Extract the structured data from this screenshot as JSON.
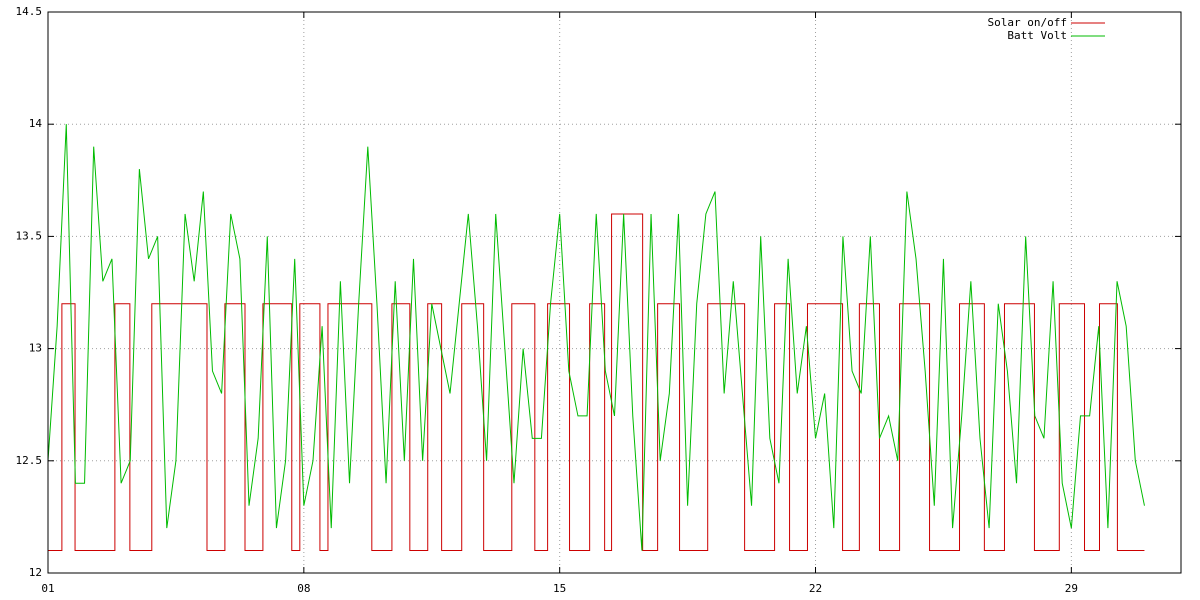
{
  "chart_data": {
    "type": "line",
    "xlim": [
      1,
      32
    ],
    "ylim": [
      12,
      14.5
    ],
    "xticks": [
      {
        "value": 1,
        "label": "01"
      },
      {
        "value": 8,
        "label": "08"
      },
      {
        "value": 15,
        "label": "15"
      },
      {
        "value": 22,
        "label": "22"
      },
      {
        "value": 29,
        "label": "29"
      }
    ],
    "yticks": [
      12,
      12.5,
      13,
      13.5,
      14,
      14.5
    ],
    "grid": true,
    "legend": "top-right",
    "series": [
      {
        "name": "Solar on/off",
        "color": "#cc0000",
        "step": true,
        "x": [
          1,
          1.38,
          1.74,
          2.83,
          3.24,
          3.84,
          5.35,
          5.84,
          6.39,
          6.88,
          7.67,
          7.89,
          8.44,
          8.66,
          9.86,
          10.41,
          10.9,
          11.39,
          11.77,
          12.32,
          12.92,
          13.69,
          14.32,
          14.67,
          15.27,
          15.82,
          16.23,
          16.42,
          17.27,
          17.68,
          18.28,
          19.05,
          20.06,
          20.88,
          21.29,
          21.78,
          22.74,
          23.2,
          23.75,
          24.3,
          25.12,
          25.94,
          26.62,
          27.17,
          27.99,
          28.67,
          29.36,
          29.77,
          30.26,
          31
        ],
        "values": [
          12.1,
          13.2,
          12.1,
          13.2,
          12.1,
          13.2,
          12.1,
          13.2,
          12.1,
          13.2,
          12.1,
          13.2,
          12.1,
          13.2,
          12.1,
          13.2,
          12.1,
          13.2,
          12.1,
          13.2,
          12.1,
          13.2,
          12.1,
          13.2,
          12.1,
          13.2,
          12.1,
          13.6,
          12.1,
          13.2,
          12.1,
          13.2,
          12.1,
          13.2,
          12.1,
          13.2,
          12.1,
          13.2,
          12.1,
          13.2,
          12.1,
          13.2,
          12.1,
          13.2,
          12.1,
          13.2,
          12.1,
          13.2,
          12.1,
          12.1
        ]
      },
      {
        "name": "Batt Volt",
        "color": "#00bb00",
        "x": [
          1,
          1.25,
          1.5,
          1.75,
          2,
          2.25,
          2.5,
          2.75,
          3,
          3.25,
          3.5,
          3.75,
          4,
          4.25,
          4.5,
          4.75,
          5,
          5.25,
          5.5,
          5.75,
          6,
          6.25,
          6.5,
          6.75,
          7,
          7.25,
          7.5,
          7.75,
          8,
          8.25,
          8.5,
          8.75,
          9,
          9.25,
          9.5,
          9.75,
          10,
          10.25,
          10.5,
          10.75,
          11,
          11.25,
          11.5,
          11.75,
          12,
          12.25,
          12.5,
          12.75,
          13,
          13.25,
          13.5,
          13.75,
          14,
          14.25,
          14.5,
          14.75,
          15,
          15.25,
          15.5,
          15.75,
          16,
          16.25,
          16.5,
          16.75,
          17,
          17.25,
          17.5,
          17.75,
          18,
          18.25,
          18.5,
          18.75,
          19,
          19.25,
          19.5,
          19.75,
          20,
          20.25,
          20.5,
          20.75,
          21,
          21.25,
          21.5,
          21.75,
          22,
          22.25,
          22.5,
          22.75,
          23,
          23.25,
          23.5,
          23.75,
          24,
          24.25,
          24.5,
          24.75,
          25,
          25.25,
          25.5,
          25.75,
          26,
          26.25,
          26.5,
          26.75,
          27,
          27.25,
          27.5,
          27.75,
          28,
          28.25,
          28.5,
          28.75,
          29,
          29.25,
          29.5,
          29.75,
          30,
          30.25,
          30.5,
          30.75,
          31
        ],
        "values": [
          12.5,
          13.1,
          14.0,
          12.4,
          12.4,
          13.9,
          13.3,
          13.4,
          12.4,
          12.5,
          13.8,
          13.4,
          13.5,
          12.2,
          12.5,
          13.6,
          13.3,
          13.7,
          12.9,
          12.8,
          13.6,
          13.4,
          12.3,
          12.6,
          13.5,
          12.2,
          12.5,
          13.4,
          12.3,
          12.5,
          13.1,
          12.2,
          13.3,
          12.4,
          13.2,
          13.9,
          13.2,
          12.4,
          13.3,
          12.5,
          13.4,
          12.5,
          13.2,
          13.0,
          12.8,
          13.2,
          13.6,
          13.1,
          12.5,
          13.6,
          13.0,
          12.4,
          13.0,
          12.6,
          12.6,
          13.2,
          13.6,
          12.9,
          12.7,
          12.7,
          13.6,
          12.9,
          12.7,
          13.6,
          12.7,
          12.1,
          13.6,
          12.5,
          12.8,
          13.6,
          12.3,
          13.2,
          13.6,
          13.7,
          12.8,
          13.3,
          12.8,
          12.3,
          13.5,
          12.6,
          12.4,
          13.4,
          12.8,
          13.1,
          12.6,
          12.8,
          12.2,
          13.5,
          12.9,
          12.8,
          13.5,
          12.6,
          12.7,
          12.5,
          13.7,
          13.4,
          12.9,
          12.3,
          13.4,
          12.2,
          12.7,
          13.3,
          12.6,
          12.2,
          13.2,
          12.9,
          12.4,
          13.5,
          12.7,
          12.6,
          13.3,
          12.4,
          12.2,
          12.7,
          12.7,
          13.1,
          12.2,
          13.3,
          13.1,
          12.5,
          12.3
        ]
      }
    ]
  }
}
